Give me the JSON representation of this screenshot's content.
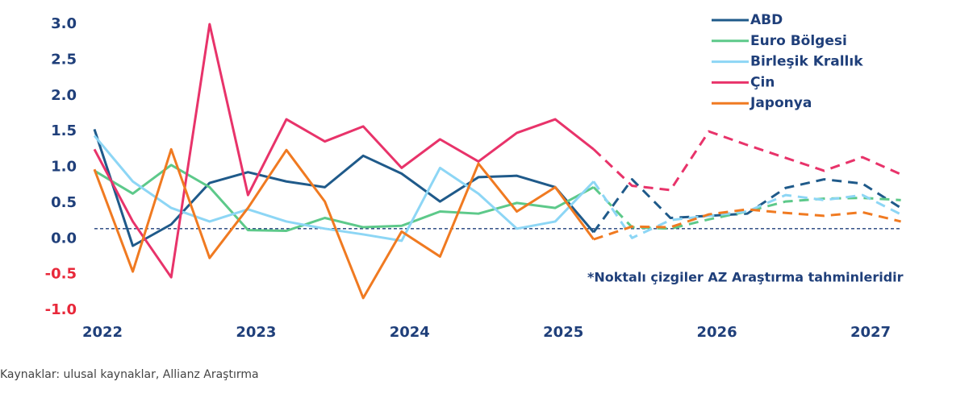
{
  "chart_data": {
    "type": "line",
    "categories": [
      "2022",
      null,
      null,
      null,
      "2023",
      null,
      null,
      null,
      "2024",
      null,
      null,
      null,
      "2025",
      null,
      null,
      null,
      "2026",
      null,
      null,
      null,
      "2027",
      null
    ],
    "forecast_start_index": 13,
    "series": [
      {
        "name": "ABD",
        "color": "#1f5a8a",
        "values": [
          1.53,
          -0.1,
          0.2,
          0.78,
          0.93,
          0.8,
          0.72,
          1.16,
          0.91,
          0.52,
          0.86,
          0.88,
          0.72,
          0.09,
          0.83,
          0.29,
          0.32,
          0.35,
          0.71,
          0.83,
          0.77,
          0.43
        ]
      },
      {
        "name": "Euro Bölgesi",
        "color": "#5dc98a",
        "values": [
          0.95,
          0.63,
          1.03,
          0.72,
          0.12,
          0.11,
          0.29,
          0.16,
          0.18,
          0.38,
          0.35,
          0.5,
          0.43,
          0.72,
          0.16,
          0.14,
          0.27,
          0.38,
          0.52,
          0.56,
          0.57,
          0.54
        ]
      },
      {
        "name": "Birleşik Krallık",
        "color": "#8dd6f5",
        "values": [
          1.44,
          0.8,
          0.43,
          0.24,
          0.41,
          0.24,
          0.14,
          0.06,
          -0.03,
          0.99,
          0.63,
          0.14,
          0.24,
          0.8,
          0.01,
          0.26,
          0.32,
          0.38,
          0.61,
          0.54,
          0.61,
          0.34
        ]
      },
      {
        "name": "Çin",
        "color": "#e8336a",
        "values": [
          1.25,
          0.24,
          -0.54,
          3.0,
          0.61,
          1.67,
          1.36,
          1.57,
          0.99,
          1.39,
          1.08,
          1.48,
          1.67,
          1.25,
          0.74,
          0.68,
          1.5,
          1.31,
          1.13,
          0.95,
          1.14,
          0.9
        ]
      },
      {
        "name": "Japonya",
        "color": "#f07a21",
        "values": [
          0.97,
          -0.46,
          1.25,
          -0.27,
          0.43,
          1.24,
          0.52,
          -0.83,
          0.1,
          -0.25,
          1.05,
          0.38,
          0.72,
          -0.01,
          0.17,
          0.16,
          0.34,
          0.41,
          0.36,
          0.32,
          0.37,
          0.24
        ]
      }
    ],
    "ylim": [
      -1.0,
      3.0
    ],
    "yticks": [
      {
        "value": 3.0,
        "label": "3.0"
      },
      {
        "value": 2.5,
        "label": "2.5"
      },
      {
        "value": 2.0,
        "label": "2.0"
      },
      {
        "value": 1.5,
        "label": "1.5"
      },
      {
        "value": 1.0,
        "label": "1.0"
      },
      {
        "value": 0.5,
        "label": "0.5"
      },
      {
        "value": 0.0,
        "label": "0.0"
      },
      {
        "value": -0.5,
        "label": "-0.5"
      },
      {
        "value": -1.0,
        "label": "-1.0"
      }
    ],
    "tick_color": "#1f3f7a",
    "negative_tick_color": "#e8283a",
    "reference_line": 0.14,
    "annotation": "*Noktalı çizgiler AZ Araştırma tahminleridir",
    "source": "Kaynaklar: ulusal kaynaklar, Allianz Araştırma",
    "legend": "top-right"
  }
}
